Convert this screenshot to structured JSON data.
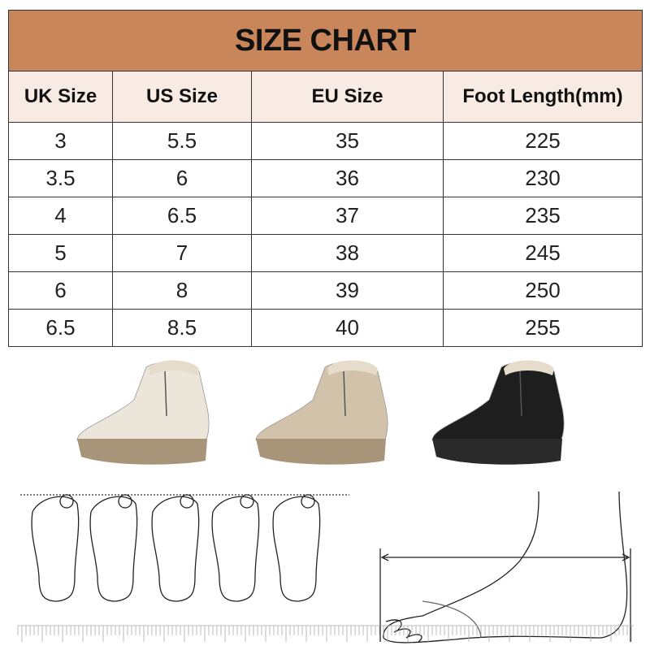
{
  "title": "SIZE CHART",
  "colors": {
    "title_bg": "#c8865a",
    "header_bg": "#f7ebe4",
    "border": "#333333"
  },
  "headers": [
    "UK Size",
    "US Size",
    "EU Size",
    "Foot Length(mm)"
  ],
  "rows": [
    [
      "3",
      "5.5",
      "35",
      "225"
    ],
    [
      "3.5",
      "6",
      "36",
      "230"
    ],
    [
      "4",
      "6.5",
      "37",
      "235"
    ],
    [
      "5",
      "7",
      "38",
      "245"
    ],
    [
      "6",
      "8",
      "39",
      "250"
    ],
    [
      "6.5",
      "8.5",
      "40",
      "255"
    ]
  ],
  "products": [
    {
      "color_name": "beige",
      "upper": "#ece5da",
      "sole": "#a89478"
    },
    {
      "color_name": "khaki",
      "upper": "#d2c2aa",
      "sole": "#a89478"
    },
    {
      "color_name": "black",
      "upper": "#1e1e1e",
      "sole": "#2a2a2a"
    }
  ]
}
